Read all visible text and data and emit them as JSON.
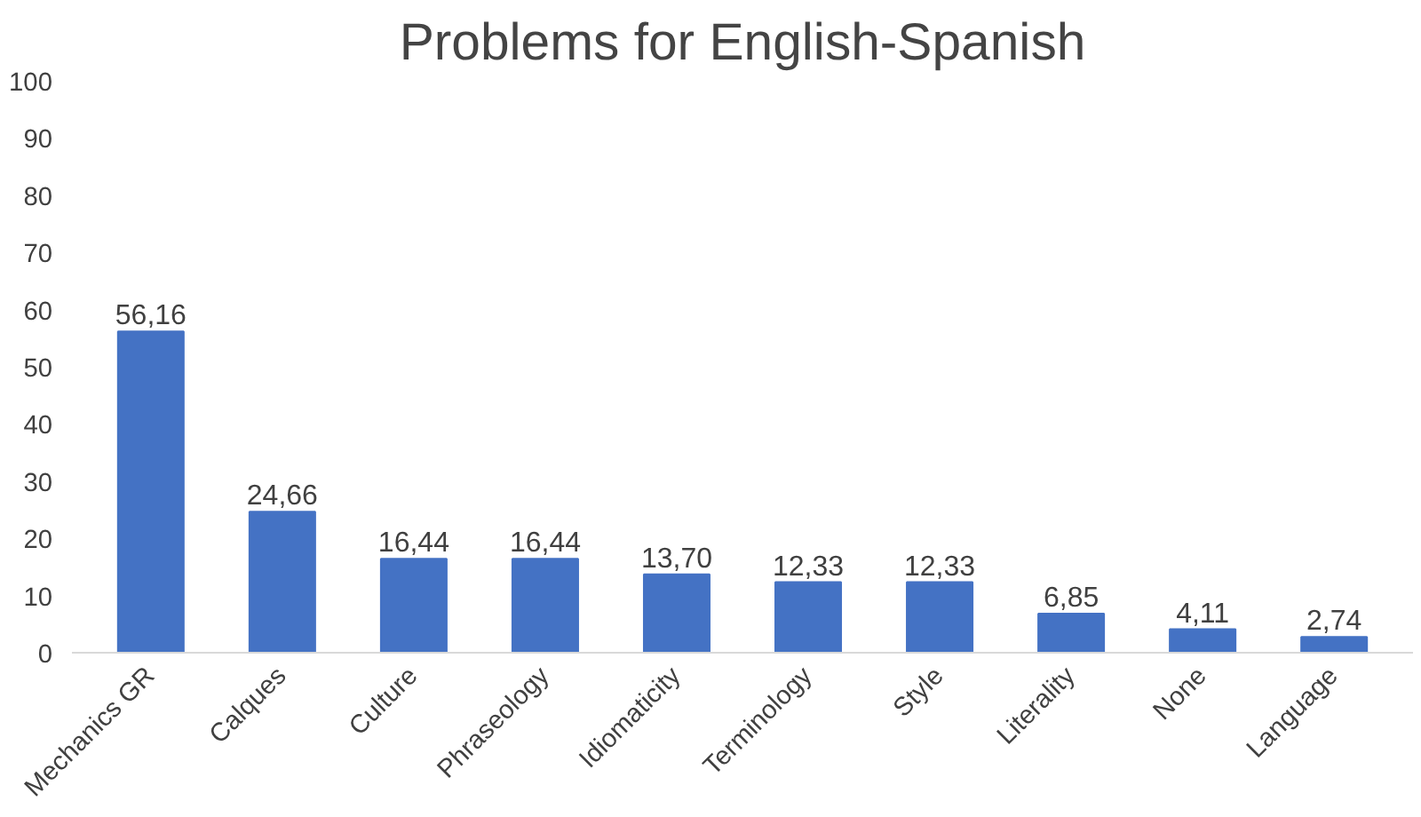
{
  "chart_data": {
    "type": "bar",
    "title": "Problems for English-Spanish",
    "categories": [
      "Mechanics GR",
      "Calques",
      "Culture",
      "Phraseology",
      "Idiomaticity",
      "Terminology",
      "Style",
      "Literality",
      "None",
      "Language"
    ],
    "values": [
      56.16,
      24.66,
      16.44,
      16.44,
      13.7,
      12.33,
      12.33,
      6.85,
      4.11,
      2.74
    ],
    "value_labels": [
      "56,16",
      "24,66",
      "16,44",
      "16,44",
      "13,70",
      "12,33",
      "12,33",
      "6,85",
      "4,11",
      "2,74"
    ],
    "color": "#4472c4",
    "ylim": [
      0,
      100
    ],
    "yticks": [
      0,
      10,
      20,
      30,
      40,
      50,
      60,
      70,
      80,
      90,
      100
    ],
    "grid": false
  }
}
